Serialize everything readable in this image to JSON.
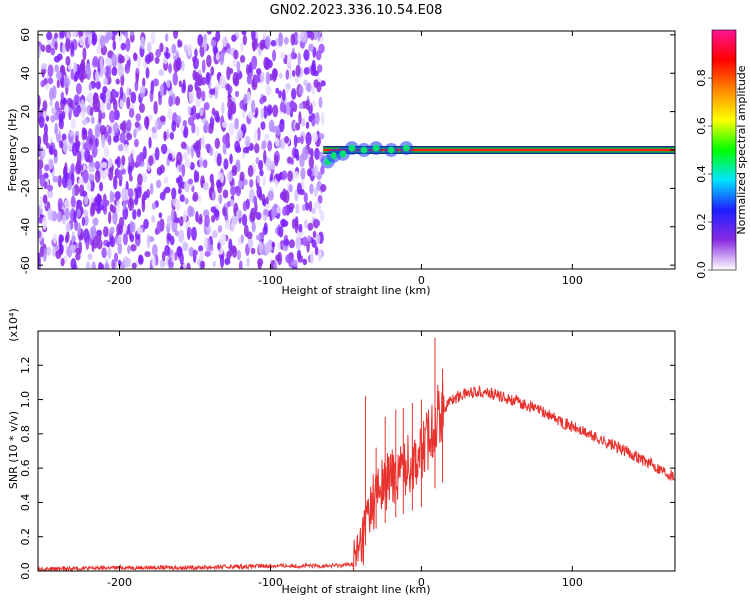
{
  "title": "GN02.2023.336.10.54.E08",
  "chart_data": [
    {
      "type": "heatmap",
      "xlabel": "Height of straight line (km)",
      "ylabel": "Frequency (Hz)",
      "xlim": [
        -254,
        168
      ],
      "ylim": [
        -62,
        62
      ],
      "x_ticks": [
        -200,
        -100,
        0,
        100
      ],
      "y_ticks": [
        -60,
        -40,
        -20,
        0,
        20,
        40,
        60
      ],
      "noise_region_x": [
        -254,
        -65
      ],
      "line_frequency": 0,
      "line_start_x": -65,
      "colorbar": {
        "label": "Normalized spectral amplitude",
        "range": [
          0.0,
          1.0
        ],
        "ticks": [
          "0.0",
          "0.2",
          "0.4",
          "0.6",
          "0.8"
        ],
        "colors": [
          "#ffffff",
          "#8a2be2",
          "#1e1eff",
          "#00e5ff",
          "#00ff00",
          "#ffff00",
          "#ff8800",
          "#ff0000",
          "#ff1493"
        ]
      }
    },
    {
      "type": "line",
      "xlabel": "Height of straight line (km)",
      "ylabel": "SNR (10 * v/v)",
      "y_multiplier": "(x10⁴)",
      "xlim": [
        -254,
        168
      ],
      "ylim": [
        0,
        1.4
      ],
      "x_ticks": [
        -200,
        -100,
        0,
        100
      ],
      "y_ticks": [
        "0.0",
        "0.2",
        "0.4",
        "0.6",
        "0.8",
        "1.0",
        "1.2"
      ],
      "series": [
        {
          "color": "#e8322e",
          "x": [
            -254,
            -200,
            -150,
            -100,
            -60,
            -45,
            -40,
            -35,
            -30,
            -20,
            -10,
            0,
            5,
            10,
            20,
            30,
            40,
            60,
            80,
            100,
            120,
            140,
            168
          ],
          "y": [
            0.01,
            0.02,
            0.02,
            0.03,
            0.03,
            0.04,
            0.15,
            0.35,
            0.45,
            0.55,
            0.62,
            0.68,
            0.78,
            0.9,
            1.0,
            1.04,
            1.05,
            1.0,
            0.93,
            0.84,
            0.76,
            0.68,
            0.55
          ]
        }
      ],
      "spikes": [
        {
          "x": -37,
          "y": 1.02
        },
        {
          "x": -30,
          "y": 0.72
        },
        {
          "x": -24,
          "y": 0.9
        },
        {
          "x": -17,
          "y": 0.94
        },
        {
          "x": -12,
          "y": 0.95
        },
        {
          "x": -6,
          "y": 0.98
        },
        {
          "x": 0,
          "y": 1.0
        },
        {
          "x": 9,
          "y": 1.36
        },
        {
          "x": 14,
          "y": 1.18
        }
      ]
    }
  ]
}
